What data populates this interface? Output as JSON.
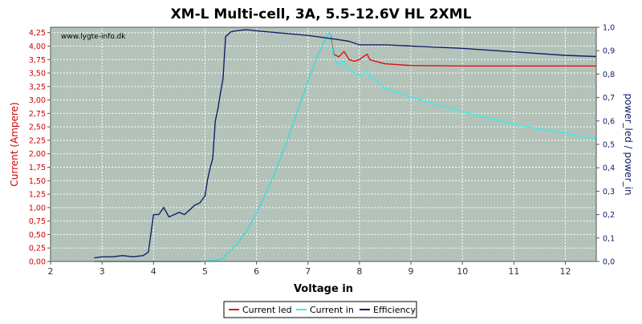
{
  "chart_data": {
    "type": "line",
    "title": "XM-L Multi-cell, 3A, 5.5-12.6V HL 2XML",
    "watermark": "www.lygte-info.dk",
    "xlabel": "Voltage in",
    "ylabel_left": "Current (Ampere)",
    "ylabel_right": "power_led / power_in",
    "xlim": [
      2,
      12.6
    ],
    "ylim_left": [
      0,
      4.35
    ],
    "ylim_right": [
      0,
      1.0
    ],
    "x_ticks": [
      "2",
      "3",
      "4",
      "5",
      "6",
      "7",
      "8",
      "9",
      "10",
      "11",
      "12"
    ],
    "y_left_ticks": [
      "0,00",
      "0,25",
      "0,50",
      "0,75",
      "1,00",
      "1,25",
      "1,50",
      "1,75",
      "2,00",
      "2,25",
      "2,50",
      "2,75",
      "3,00",
      "3,25",
      "3,50",
      "3,75",
      "4,00",
      "4,25"
    ],
    "y_right_ticks": [
      "0,0",
      "0,1",
      "0,2",
      "0,3",
      "0,4",
      "0,5",
      "0,6",
      "0,7",
      "0,8",
      "0,9",
      "1,0"
    ],
    "grid": true,
    "legend_position": "bottom-center",
    "colors": {
      "plot_bg": "#b4c3b9",
      "grid": "#ffffff",
      "current_led": "#dd1111",
      "current_in": "#33eeee",
      "efficiency": "#11206a",
      "left_axis_label": "#cc0000",
      "right_axis_label": "#11206a"
    },
    "series": [
      {
        "name": "Current led",
        "axis": "left",
        "color": "#dd1111",
        "x": [
          2.85,
          4.9,
          5.2,
          5.35,
          5.4,
          5.6,
          5.8,
          6.0,
          6.2,
          6.4,
          6.6,
          6.8,
          7.0,
          7.2,
          7.35,
          7.42,
          7.45,
          7.5,
          7.6,
          7.7,
          7.8,
          7.9,
          8.0,
          8.1,
          8.15,
          8.2,
          8.3,
          8.5,
          9.0,
          10.0,
          11.0,
          12.0,
          12.6
        ],
        "y": [
          0.0,
          0.0,
          0.02,
          0.05,
          0.12,
          0.3,
          0.55,
          0.9,
          1.3,
          1.75,
          2.25,
          2.8,
          3.35,
          3.85,
          4.15,
          4.25,
          4.15,
          3.85,
          3.8,
          3.9,
          3.75,
          3.72,
          3.75,
          3.82,
          3.85,
          3.75,
          3.72,
          3.67,
          3.64,
          3.63,
          3.63,
          3.63,
          3.63
        ]
      },
      {
        "name": "Current in",
        "axis": "left",
        "color": "#33eeee",
        "x": [
          2.85,
          4.9,
          5.2,
          5.35,
          5.4,
          5.6,
          5.8,
          6.0,
          6.2,
          6.4,
          6.6,
          6.8,
          7.0,
          7.2,
          7.35,
          7.42,
          7.45,
          7.5,
          7.6,
          7.7,
          7.8,
          7.9,
          8.0,
          8.1,
          8.15,
          8.2,
          8.3,
          8.5,
          9.0,
          10.0,
          11.0,
          12.0,
          12.6
        ],
        "y": [
          0.0,
          0.0,
          0.02,
          0.05,
          0.12,
          0.3,
          0.55,
          0.9,
          1.3,
          1.75,
          2.25,
          2.8,
          3.35,
          3.85,
          4.15,
          4.25,
          4.1,
          3.8,
          3.65,
          3.72,
          3.55,
          3.5,
          3.45,
          3.5,
          3.55,
          3.42,
          3.38,
          3.22,
          3.05,
          2.78,
          2.55,
          2.38,
          2.27
        ]
      },
      {
        "name": "Efficiency",
        "axis": "right",
        "color": "#11206a",
        "x": [
          2.85,
          3.0,
          3.2,
          3.4,
          3.6,
          3.8,
          3.9,
          3.95,
          4.0,
          4.1,
          4.2,
          4.3,
          4.4,
          4.5,
          4.6,
          4.7,
          4.8,
          4.9,
          5.0,
          5.05,
          5.1,
          5.15,
          5.2,
          5.25,
          5.3,
          5.35,
          5.4,
          5.5,
          5.6,
          5.8,
          6.0,
          6.5,
          7.0,
          7.5,
          7.8,
          8.0,
          8.5,
          9.0,
          10.0,
          11.0,
          12.0,
          12.6
        ],
        "y": [
          0.015,
          0.02,
          0.02,
          0.025,
          0.02,
          0.025,
          0.04,
          0.12,
          0.2,
          0.2,
          0.23,
          0.19,
          0.2,
          0.21,
          0.2,
          0.22,
          0.24,
          0.25,
          0.28,
          0.35,
          0.4,
          0.44,
          0.6,
          0.65,
          0.72,
          0.78,
          0.96,
          0.98,
          0.985,
          0.99,
          0.985,
          0.975,
          0.965,
          0.95,
          0.94,
          0.925,
          0.925,
          0.92,
          0.91,
          0.895,
          0.88,
          0.875
        ]
      }
    ]
  }
}
